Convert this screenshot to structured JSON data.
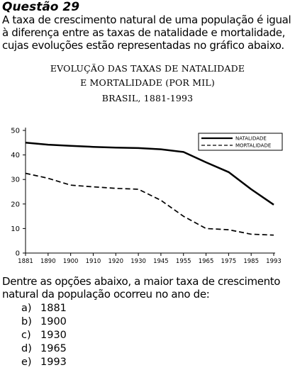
{
  "question": {
    "title": "Questão 29",
    "stem_lines": [
      "A taxa de crescimento natural de uma população é igual",
      "à diferença entre as taxas de natalidade e mortalidade,",
      "cujas evoluções estão representadas no gráfico abaixo."
    ],
    "prompt_lines": [
      "Dentre as opções abaixo, a maior taxa de crescimento",
      "natural da população ocorreu no ano de:"
    ],
    "options": [
      {
        "letter": "a)",
        "text": "1881"
      },
      {
        "letter": "b)",
        "text": "1900"
      },
      {
        "letter": "c)",
        "text": "1930"
      },
      {
        "letter": "d)",
        "text": "1965"
      },
      {
        "letter": "e)",
        "text": "1993"
      }
    ]
  },
  "chart_data": {
    "type": "line",
    "title_lines": [
      "EVOLUÇÃO DAS TAXAS DE NATALIDADE",
      "E MORTALIDADE (POR MIL)",
      "BRASIL, 1881-1993"
    ],
    "x": [
      "1881",
      "1890",
      "1900",
      "1910",
      "1920",
      "1930",
      "1945",
      "1955",
      "1965",
      "1975",
      "1985",
      "1993"
    ],
    "series": [
      {
        "name": "NATALIDADE",
        "style": "solid",
        "values": [
          45,
          44.2,
          43.7,
          43.3,
          43,
          42.8,
          42.3,
          41.2,
          37,
          33,
          26,
          19.7
        ]
      },
      {
        "name": "MORTALIDADE",
        "style": "dashed",
        "values": [
          32.5,
          30.5,
          27.7,
          27,
          26.4,
          26,
          21.5,
          15,
          10,
          9.5,
          7.7,
          7.3
        ]
      }
    ],
    "yticks": [
      "0",
      "10",
      "20",
      "30",
      "40",
      "50"
    ],
    "ylim": [
      0,
      50
    ],
    "legend": "top-right",
    "grid": false
  }
}
